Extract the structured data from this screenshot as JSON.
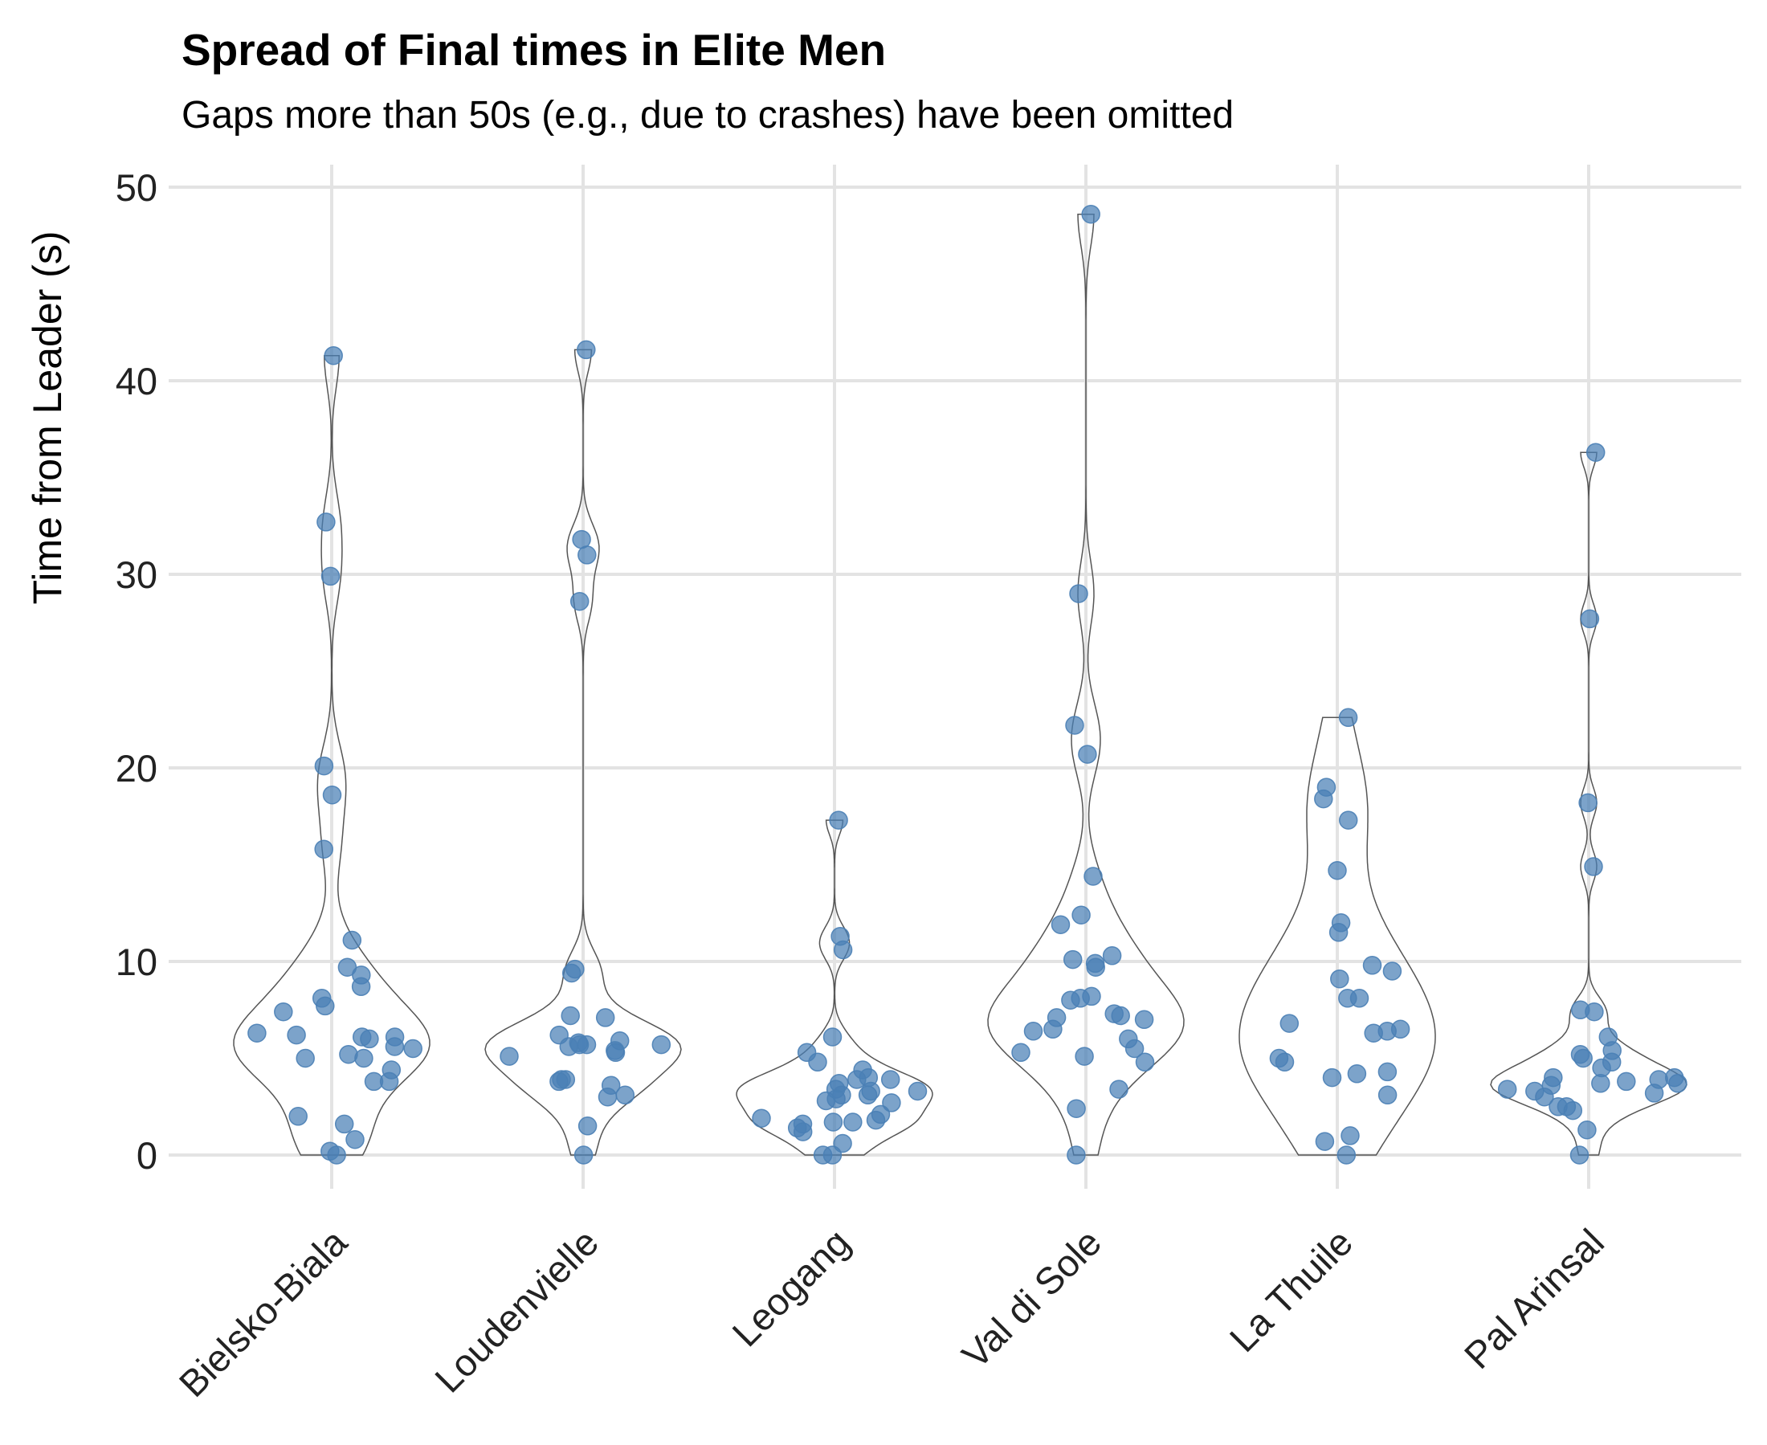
{
  "chart_data": {
    "type": "violin",
    "title": "Spread of Final times in Elite Men",
    "subtitle": "Gaps more than 50s (e.g., due to crashes) have been omitted",
    "xlabel": "",
    "ylabel": "Time from Leader (s)",
    "ylim": [
      0,
      50
    ],
    "yticks": [
      0,
      10,
      20,
      30,
      40,
      50
    ],
    "grid": true,
    "categories": [
      "Bielsko-Biala",
      "Loudenvielle",
      "Leogang",
      "Val di Sole",
      "La Thuile",
      "Pal Arinsal"
    ],
    "point_color": "#4a7fb5",
    "outline_color": "#555555",
    "series": [
      {
        "category": "Bielsko-Biala",
        "values": [
          41.3,
          32.7,
          29.9,
          20.1,
          18.6,
          15.8,
          11.1,
          9.7,
          9.3,
          8.7,
          8.1,
          7.7,
          7.4,
          6.3,
          6.2,
          6.1,
          6.1,
          6.0,
          5.6,
          5.5,
          5.2,
          5.0,
          5.0,
          4.4,
          3.8,
          3.8,
          2.0,
          1.6,
          0.8,
          0.2,
          0.0
        ]
      },
      {
        "category": "Loudenvielle",
        "values": [
          41.6,
          31.8,
          31.0,
          28.6,
          9.6,
          9.4,
          7.2,
          7.1,
          6.2,
          5.9,
          5.8,
          5.7,
          5.7,
          5.7,
          5.6,
          5.4,
          5.3,
          5.1,
          3.9,
          3.9,
          3.8,
          3.6,
          3.1,
          3.0,
          1.5,
          0.0
        ]
      },
      {
        "category": "Leogang",
        "values": [
          17.3,
          11.3,
          10.6,
          6.1,
          5.3,
          4.8,
          4.4,
          4.0,
          3.9,
          3.9,
          3.7,
          3.4,
          3.3,
          3.3,
          3.1,
          3.1,
          2.9,
          2.8,
          2.7,
          2.1,
          1.9,
          1.8,
          1.7,
          1.7,
          1.6,
          1.4,
          1.2,
          0.6,
          0.0,
          0.0
        ]
      },
      {
        "category": "Val di Sole",
        "values": [
          48.6,
          29.0,
          22.2,
          20.7,
          14.4,
          12.4,
          11.9,
          10.3,
          10.1,
          9.9,
          9.7,
          8.2,
          8.1,
          8.0,
          7.3,
          7.2,
          7.1,
          7.0,
          6.5,
          6.4,
          6.0,
          5.5,
          5.3,
          5.1,
          4.8,
          3.4,
          2.4,
          0.0
        ]
      },
      {
        "category": "La Thuile",
        "values": [
          22.6,
          19.0,
          18.4,
          17.3,
          14.7,
          12.0,
          11.5,
          9.8,
          9.5,
          9.1,
          8.1,
          8.1,
          6.8,
          6.5,
          6.4,
          6.3,
          5.0,
          4.8,
          4.3,
          4.2,
          4.0,
          3.1,
          1.0,
          0.7,
          0.0
        ]
      },
      {
        "category": "Pal Arinsal",
        "values": [
          36.3,
          27.7,
          18.2,
          14.9,
          7.5,
          7.4,
          6.1,
          5.4,
          5.2,
          5.0,
          4.8,
          4.5,
          4.0,
          4.0,
          3.9,
          3.8,
          3.7,
          3.7,
          3.6,
          3.4,
          3.3,
          3.2,
          3.0,
          2.5,
          2.5,
          2.3,
          1.3,
          0.0
        ]
      }
    ]
  }
}
